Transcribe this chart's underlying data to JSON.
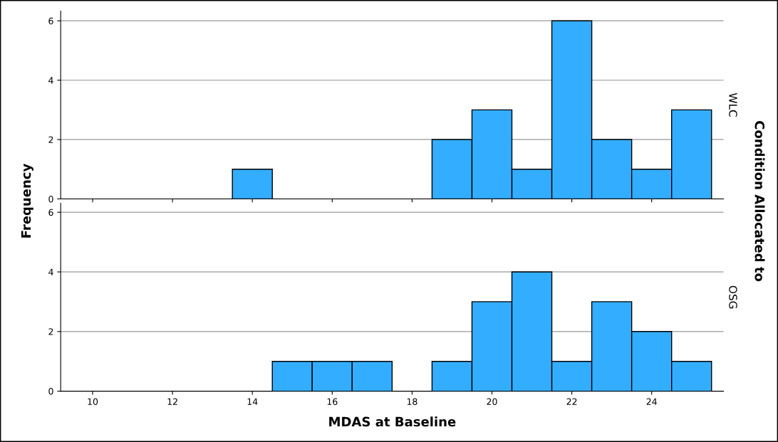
{
  "chart_data": [
    {
      "type": "histogram",
      "bins": [
        13.5,
        14.5,
        15.5,
        16.5,
        17.5,
        18.5,
        19.5,
        20.5,
        21.5,
        22.5,
        23.5,
        24.5,
        25.5
      ],
      "values": [
        1,
        0,
        0,
        0,
        0,
        2,
        3,
        1,
        6,
        2,
        1,
        3
      ],
      "color": "#33adff",
      "xlim": [
        9.2,
        25.8
      ],
      "xticks": [
        10,
        12,
        14,
        16,
        18,
        20,
        22,
        24
      ],
      "ylim": [
        0,
        6.33
      ],
      "yticks": [
        0,
        2,
        4,
        6
      ],
      "grid": "y",
      "tick_labels": "y",
      "ylabel": "Frequency",
      "y2label": "WLC",
      "annotations": [
        "Condition Allocated to"
      ]
    },
    {
      "type": "histogram",
      "bins": [
        13.5,
        14.5,
        15.5,
        16.5,
        17.5,
        18.5,
        19.5,
        20.5,
        21.5,
        22.5,
        23.5,
        24.5,
        25.5
      ],
      "values": [
        0,
        1,
        1,
        1,
        0,
        1,
        3,
        4,
        1,
        3,
        2,
        1
      ],
      "color": "#33adff",
      "xlim": [
        9.2,
        25.8
      ],
      "xticks": [
        10,
        12,
        14,
        16,
        18,
        20,
        22,
        24
      ],
      "ylim": [
        0,
        6.3
      ],
      "yticks": [
        0,
        2,
        4,
        6
      ],
      "grid": "y",
      "xlabel": "MDAS at Baseline",
      "y2label": "OSG"
    }
  ]
}
